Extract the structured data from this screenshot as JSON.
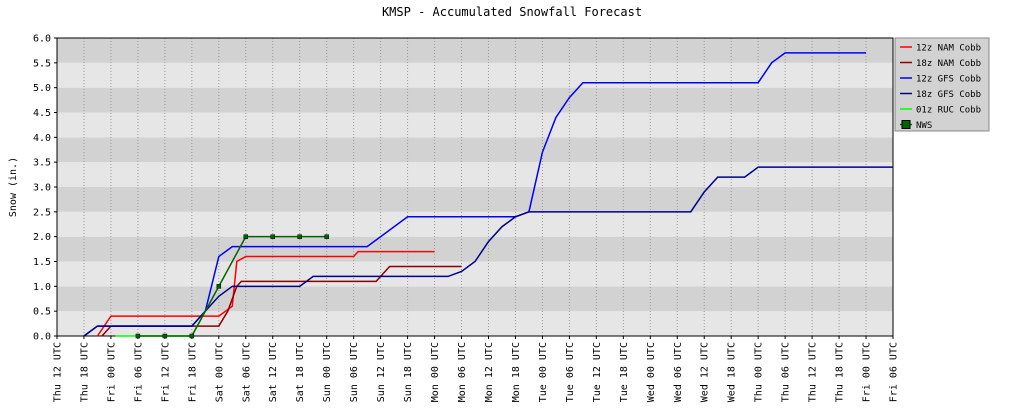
{
  "chart_data": {
    "type": "line",
    "title": "KMSP - Accumulated Snowfall Forecast",
    "y_label": "Snow (in.)",
    "xlim": [
      0,
      186
    ],
    "xticks": [
      {
        "value": 0,
        "label": "Thu 12 UTC"
      },
      {
        "value": 6,
        "label": "Thu 18 UTC"
      },
      {
        "value": 12,
        "label": "Fri 00 UTC"
      },
      {
        "value": 18,
        "label": "Fri 06 UTC"
      },
      {
        "value": 24,
        "label": "Fri 12 UTC"
      },
      {
        "value": 30,
        "label": "Fri 18 UTC"
      },
      {
        "value": 36,
        "label": "Sat 00 UTC"
      },
      {
        "value": 42,
        "label": "Sat 06 UTC"
      },
      {
        "value": 48,
        "label": "Sat 12 UTC"
      },
      {
        "value": 54,
        "label": "Sat 18 UTC"
      },
      {
        "value": 60,
        "label": "Sun 00 UTC"
      },
      {
        "value": 66,
        "label": "Sun 06 UTC"
      },
      {
        "value": 72,
        "label": "Sun 12 UTC"
      },
      {
        "value": 78,
        "label": "Sun 18 UTC"
      },
      {
        "value": 84,
        "label": "Mon 00 UTC"
      },
      {
        "value": 90,
        "label": "Mon 06 UTC"
      },
      {
        "value": 96,
        "label": "Mon 12 UTC"
      },
      {
        "value": 102,
        "label": "Mon 18 UTC"
      },
      {
        "value": 108,
        "label": "Tue 00 UTC"
      },
      {
        "value": 114,
        "label": "Tue 06 UTC"
      },
      {
        "value": 120,
        "label": "Tue 12 UTC"
      },
      {
        "value": 126,
        "label": "Tue 18 UTC"
      },
      {
        "value": 132,
        "label": "Wed 00 UTC"
      },
      {
        "value": 138,
        "label": "Wed 06 UTC"
      },
      {
        "value": 144,
        "label": "Wed 12 UTC"
      },
      {
        "value": 150,
        "label": "Wed 18 UTC"
      },
      {
        "value": 156,
        "label": "Thu 00 UTC"
      },
      {
        "value": 162,
        "label": "Thu 06 UTC"
      },
      {
        "value": 168,
        "label": "Thu 12 UTC"
      },
      {
        "value": 174,
        "label": "Thu 18 UTC"
      },
      {
        "value": 180,
        "label": "Fri 00 UTC"
      },
      {
        "value": 186,
        "label": "Fri 06 UTC"
      }
    ],
    "ylim": [
      0,
      6
    ],
    "yticks": [
      {
        "value": 0,
        "label": "0.0"
      },
      {
        "value": 0.5,
        "label": "0.5"
      },
      {
        "value": 1,
        "label": "1.0"
      },
      {
        "value": 1.5,
        "label": "1.5"
      },
      {
        "value": 2,
        "label": "2.0"
      },
      {
        "value": 2.5,
        "label": "2.5"
      },
      {
        "value": 3,
        "label": "3.0"
      },
      {
        "value": 3.5,
        "label": "3.5"
      },
      {
        "value": 4,
        "label": "4.0"
      },
      {
        "value": 4.5,
        "label": "4.5"
      },
      {
        "value": 5,
        "label": "5.0"
      },
      {
        "value": 5.5,
        "label": "5.5"
      },
      {
        "value": 6,
        "label": "6.0"
      }
    ],
    "grid": true,
    "legend_position": "right",
    "series": [
      {
        "name": "12z NAM Cobb",
        "color": "#ff0000",
        "x": [
          9,
          12,
          36,
          39,
          40,
          42,
          66,
          67,
          84
        ],
        "values": [
          0,
          0.4,
          0.4,
          0.6,
          1.5,
          1.6,
          1.6,
          1.7,
          1.7
        ]
      },
      {
        "name": "18z NAM Cobb",
        "color": "#8b0000",
        "x": [
          10,
          12,
          36,
          38,
          40,
          41,
          71,
          74,
          90
        ],
        "values": [
          0,
          0.2,
          0.2,
          0.5,
          1.0,
          1.1,
          1.1,
          1.4,
          1.4
        ]
      },
      {
        "name": "12z GFS Cobb",
        "color": "#0000ff",
        "x": [
          6,
          9,
          30,
          33,
          36,
          39,
          69,
          78,
          102,
          105,
          108,
          111,
          114,
          117,
          156,
          159,
          162,
          180
        ],
        "values": [
          0,
          0.2,
          0.2,
          0.5,
          1.6,
          1.8,
          1.8,
          2.4,
          2.4,
          2.5,
          3.7,
          4.4,
          4.8,
          5.1,
          5.1,
          5.5,
          5.7,
          5.7
        ]
      },
      {
        "name": "18z GFS Cobb",
        "color": "#00008b",
        "x": [
          6,
          9,
          30,
          33,
          36,
          39,
          54,
          57,
          87,
          90,
          93,
          96,
          99,
          102,
          105,
          141,
          144,
          147,
          153,
          156,
          186
        ],
        "values": [
          0,
          0.2,
          0.2,
          0.5,
          0.8,
          1.0,
          1.0,
          1.2,
          1.2,
          1.3,
          1.5,
          1.9,
          2.2,
          2.4,
          2.5,
          2.5,
          2.9,
          3.2,
          3.2,
          3.4,
          3.4
        ]
      },
      {
        "name": "01z RUC Cobb",
        "color": "#00ff00",
        "x": [
          13,
          30,
          33
        ],
        "values": [
          0,
          0,
          0.5
        ]
      },
      {
        "name": "NWS",
        "color": "#006400",
        "marker": "square",
        "x": [
          18,
          24,
          30,
          36,
          42,
          48,
          54,
          60
        ],
        "values": [
          0,
          0,
          0,
          1.0,
          2.0,
          2.0,
          2.0,
          2.0
        ]
      }
    ]
  }
}
